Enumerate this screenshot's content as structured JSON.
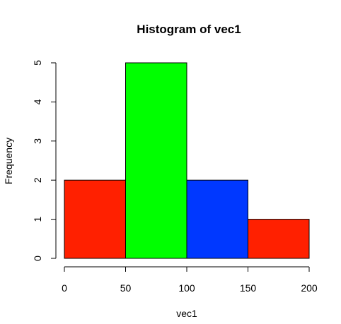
{
  "chart_data": {
    "type": "bar",
    "title": "Histogram of vec1",
    "xlabel": "vec1",
    "ylabel": "Frequency",
    "bins": [
      {
        "start": 0,
        "end": 50,
        "count": 2,
        "color": "#ff2000"
      },
      {
        "start": 50,
        "end": 100,
        "count": 5,
        "color": "#00ff00"
      },
      {
        "start": 100,
        "end": 150,
        "count": 2,
        "color": "#0038ff"
      },
      {
        "start": 150,
        "end": 200,
        "count": 1,
        "color": "#ff2000"
      }
    ],
    "xlim": [
      0,
      200
    ],
    "ylim": [
      0,
      5
    ],
    "x_ticks": [
      "0",
      "50",
      "100",
      "150",
      "200"
    ],
    "y_ticks": [
      "0",
      "1",
      "2",
      "3",
      "4",
      "5"
    ],
    "grid": false,
    "legend": "none"
  }
}
